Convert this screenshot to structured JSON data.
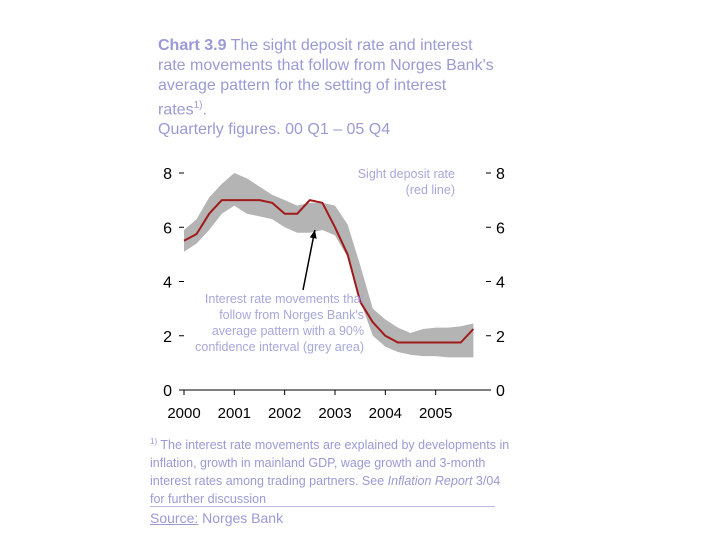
{
  "title": {
    "label": "Chart 3.9",
    "text": "The sight deposit rate and interest rate movements that follow from Norges Bank's average pattern for the setting of interest rates",
    "sup": "1)",
    "end": ".",
    "subtitle": "Quarterly figures. 00 Q1 – 05 Q4"
  },
  "chart_data": {
    "type": "line",
    "x_ticks": [
      "2000",
      "2001",
      "2002",
      "2003",
      "2004",
      "2005"
    ],
    "y_ticks": [
      0,
      2,
      4,
      6,
      8
    ],
    "ylim": [
      0,
      8
    ],
    "xlim": [
      2000,
      2006
    ],
    "grid": false,
    "annotations": {
      "line_label": "Sight deposit rate (red line)",
      "band_label": "Interest rate movements that follow from Norges Bank's average pattern with a 90% confidence interval (grey area)"
    },
    "series": [
      {
        "type": "line",
        "color": "#a11a1a",
        "x": [
          2000.0,
          2000.25,
          2000.5,
          2000.75,
          2001.0,
          2001.25,
          2001.5,
          2001.75,
          2002.0,
          2002.25,
          2002.5,
          2002.75,
          2003.0,
          2003.25,
          2003.5,
          2003.75,
          2004.0,
          2004.25,
          2004.5,
          2004.75,
          2005.0,
          2005.25,
          2005.5,
          2005.75
        ],
        "values": [
          5.5,
          5.75,
          6.5,
          7.0,
          7.0,
          7.0,
          7.0,
          6.9,
          6.5,
          6.5,
          7.0,
          6.9,
          6.0,
          5.0,
          3.25,
          2.5,
          2.0,
          1.75,
          1.75,
          1.75,
          1.75,
          1.75,
          1.75,
          2.25
        ]
      },
      {
        "type": "band",
        "color": "#b4b4b4",
        "x": [
          2000.0,
          2000.25,
          2000.5,
          2000.75,
          2001.0,
          2001.25,
          2001.5,
          2001.75,
          2002.0,
          2002.25,
          2002.5,
          2002.75,
          2003.0,
          2003.25,
          2003.5,
          2003.75,
          2004.0,
          2004.25,
          2004.5,
          2004.75,
          2005.0,
          2005.25,
          2005.5,
          2005.75
        ],
        "upper": [
          5.9,
          6.3,
          7.1,
          7.6,
          8.0,
          7.8,
          7.5,
          7.2,
          7.0,
          6.8,
          6.9,
          6.9,
          6.8,
          6.1,
          4.6,
          3.0,
          2.6,
          2.3,
          2.1,
          2.25,
          2.3,
          2.3,
          2.35,
          2.45
        ],
        "lower": [
          5.1,
          5.4,
          5.9,
          6.5,
          6.8,
          6.5,
          6.4,
          6.3,
          6.0,
          5.8,
          5.8,
          5.9,
          5.7,
          4.9,
          3.3,
          2.0,
          1.6,
          1.4,
          1.3,
          1.25,
          1.25,
          1.2,
          1.2,
          1.2
        ]
      }
    ]
  },
  "footnote": {
    "mark": "1)",
    "text1": "The interest rate movements are explained by developments in inflation, growth in mainland GDP, wage growth and 3-month interest rates among trading partners. See ",
    "italic": "Inflation Report",
    "text2": " 3/04 for further discussion"
  },
  "source": {
    "label": "Source:",
    "text": "Norges Bank"
  }
}
